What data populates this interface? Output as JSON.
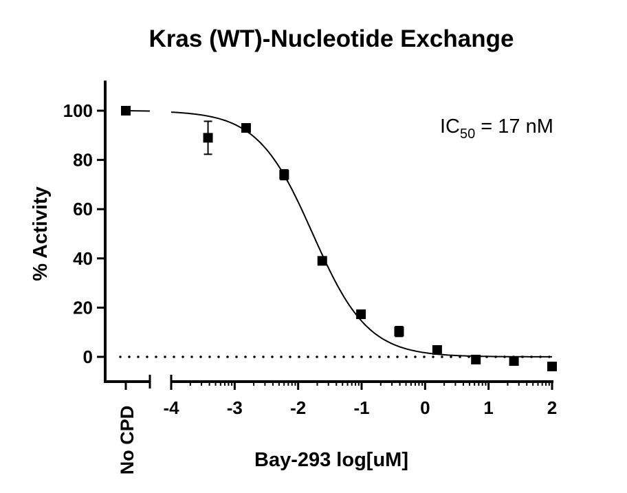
{
  "chart_data": {
    "type": "scatter",
    "title": "Kras (WT)-Nucleotide Exchange",
    "xlabel": "Bay-293 log[uM]",
    "ylabel": "% Activity",
    "annotation": {
      "prefix": "IC",
      "subscript": "50",
      "suffix": " = 17 nM"
    },
    "control_label": "No CPD",
    "control_point": {
      "y": 100
    },
    "xlim": [
      -4,
      2
    ],
    "ylim": [
      -10,
      110
    ],
    "x_ticks": [
      -4,
      -3,
      -2,
      -1,
      0,
      1,
      2
    ],
    "x_tick_labels": [
      "-4",
      "-3",
      "-2",
      "-1",
      "0",
      "1",
      "2"
    ],
    "y_ticks": [
      0,
      20,
      40,
      60,
      80,
      100
    ],
    "y_tick_labels": [
      "0",
      "20",
      "40",
      "60",
      "80",
      "100"
    ],
    "x_scale": "log-decade minor ticks",
    "reference_line": {
      "y": 0,
      "style": "dotted"
    },
    "points": [
      {
        "x": -3.42,
        "y": 89,
        "err": 6.7
      },
      {
        "x": -2.82,
        "y": 93,
        "err": 0
      },
      {
        "x": -2.22,
        "y": 74,
        "err": 2
      },
      {
        "x": -1.62,
        "y": 39,
        "err": 0
      },
      {
        "x": -1.01,
        "y": 17.3,
        "err": 0
      },
      {
        "x": -0.41,
        "y": 10.3,
        "err": 2
      },
      {
        "x": 0.19,
        "y": 2.8,
        "err": 0
      },
      {
        "x": 0.8,
        "y": -1.1,
        "err": 0
      },
      {
        "x": 1.4,
        "y": -1.7,
        "err": 0
      },
      {
        "x": 2.0,
        "y": -3.9,
        "err": 0
      }
    ],
    "fit": {
      "model": "4PL",
      "top": 100,
      "bottom": 0,
      "log_ic50": -1.77,
      "hill": 1
    },
    "color": "#000000"
  }
}
